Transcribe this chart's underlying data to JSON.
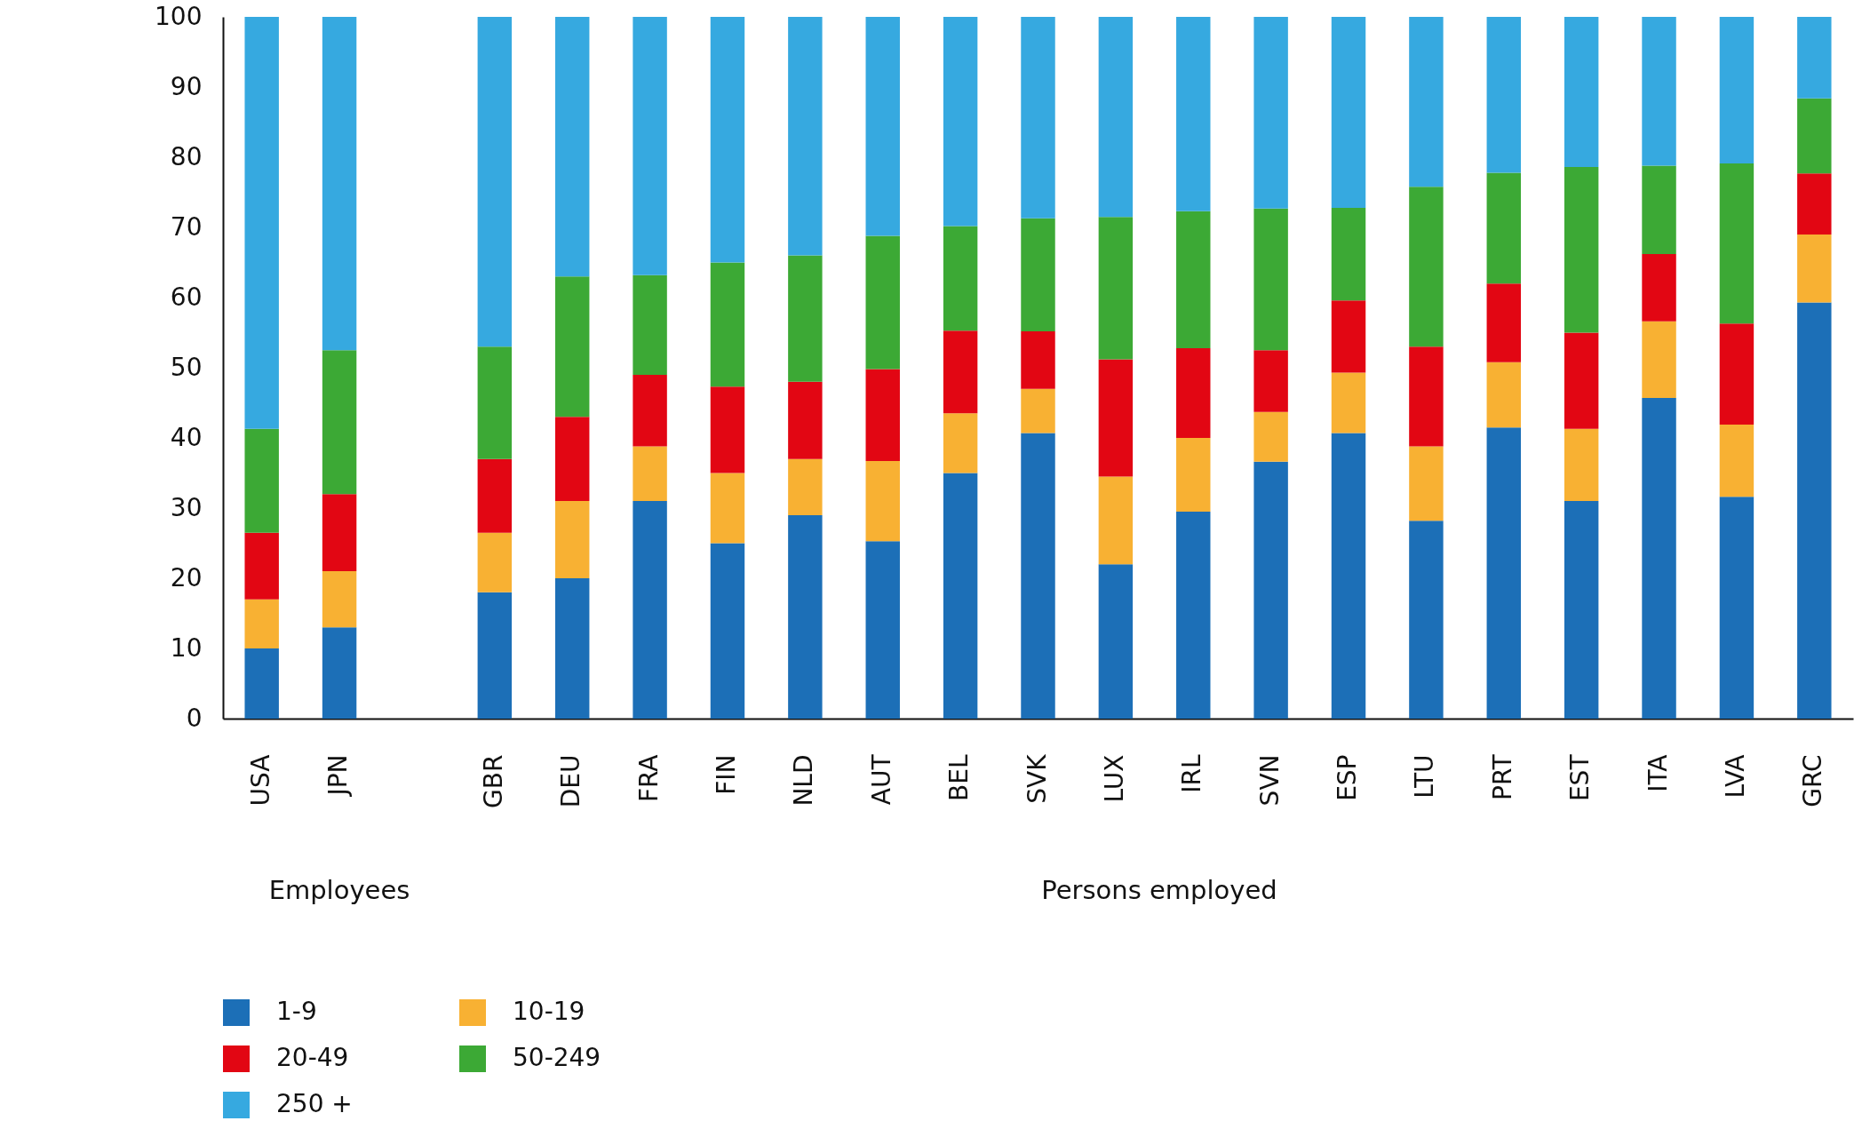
{
  "chart_data": {
    "type": "bar",
    "stacked": true,
    "categories": [
      "USA",
      "JPN",
      null,
      "GBR",
      "DEU",
      "FRA",
      "FIN",
      "NLD",
      "AUT",
      "BEL",
      "SVK",
      "LUX",
      "IRL",
      "SVN",
      "ESP",
      "LTU",
      "PRT",
      "EST",
      "ITA",
      "LVA",
      "GRC"
    ],
    "series": [
      {
        "name": "1-9",
        "color": "#1c6fb7",
        "values": [
          10,
          13,
          null,
          18,
          20,
          31,
          25,
          29,
          25.3,
          35,
          40.7,
          22,
          29.5,
          36.6,
          40.7,
          28.2,
          41.5,
          31,
          45.7,
          31.6,
          59.3
        ]
      },
      {
        "name": "10-19",
        "color": "#f8b133",
        "values": [
          7,
          8,
          null,
          8.5,
          11,
          7.8,
          10,
          8,
          11.4,
          8.5,
          6.3,
          12.5,
          10.5,
          7.1,
          8.6,
          10.6,
          9.3,
          10.3,
          10.9,
          10.3,
          9.7
        ]
      },
      {
        "name": "20-49",
        "color": "#e20613",
        "values": [
          9.5,
          11,
          null,
          10.5,
          12,
          10.2,
          12.3,
          11,
          13.1,
          11.8,
          8.2,
          16.7,
          12.8,
          8.8,
          10.3,
          14.2,
          11.2,
          13.7,
          9.6,
          14.4,
          8.7
        ]
      },
      {
        "name": "50-249",
        "color": "#3ca935",
        "values": [
          14.8,
          20.5,
          null,
          16,
          20,
          14.2,
          17.7,
          18,
          19,
          14.9,
          16.1,
          20.3,
          19.5,
          20.2,
          13.2,
          22.8,
          15.8,
          23.6,
          12.6,
          22.8,
          10.7
        ]
      },
      {
        "name": "250 +",
        "color": "#36a9e0",
        "values": [
          58.7,
          47.5,
          null,
          47,
          37,
          36.8,
          35,
          34,
          31.2,
          29.8,
          28.7,
          28.5,
          27.7,
          27.3,
          27.2,
          24.2,
          22.2,
          21.4,
          21.2,
          20.9,
          11.6
        ]
      }
    ],
    "ylim": [
      0,
      100
    ],
    "yticks": [
      0,
      10,
      20,
      30,
      40,
      50,
      60,
      70,
      80,
      90,
      100
    ],
    "grid": false,
    "legend": "bottom",
    "annotations": [
      "Employees",
      "Persons employed"
    ]
  }
}
